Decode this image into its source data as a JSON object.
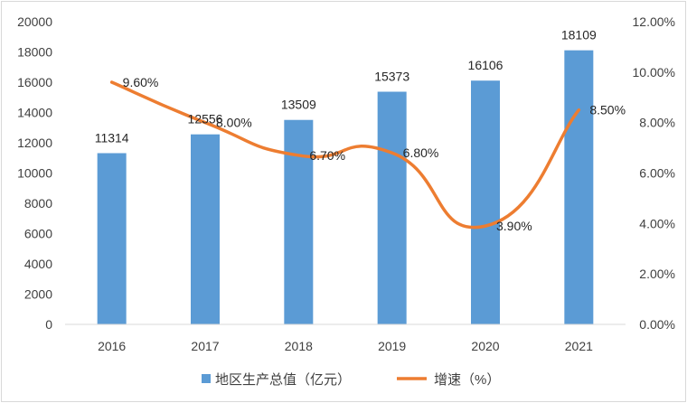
{
  "chart_data": {
    "type": "bar",
    "categories": [
      "2016",
      "2017",
      "2018",
      "2019",
      "2020",
      "2021"
    ],
    "series": [
      {
        "name": "地区生产总值（亿元）",
        "type": "bar",
        "axis": "left",
        "values": [
          11314,
          12556,
          13509,
          15373,
          16106,
          18109
        ],
        "labels": [
          "11314",
          "12556",
          "13509",
          "15373",
          "16106",
          "18109"
        ],
        "color": "#5b9bd5"
      },
      {
        "name": "增速（%）",
        "type": "line",
        "smooth": true,
        "axis": "right",
        "values": [
          9.6,
          8.0,
          6.7,
          6.8,
          3.9,
          8.5
        ],
        "labels": [
          "9.60%",
          "8.00%",
          "6.70%",
          "6.80%",
          "3.90%",
          "8.50%"
        ],
        "color": "#ed7d31"
      }
    ],
    "y_left": {
      "ylim": [
        0,
        20000
      ],
      "ticks": [
        "0",
        "2000",
        "4000",
        "6000",
        "8000",
        "10000",
        "12000",
        "14000",
        "16000",
        "18000",
        "20000"
      ]
    },
    "y_right": {
      "ylim": [
        0,
        12
      ],
      "ticks": [
        "0.00%",
        "2.00%",
        "4.00%",
        "6.00%",
        "8.00%",
        "10.00%",
        "12.00%"
      ]
    },
    "grid": false,
    "legend": "bottom"
  }
}
